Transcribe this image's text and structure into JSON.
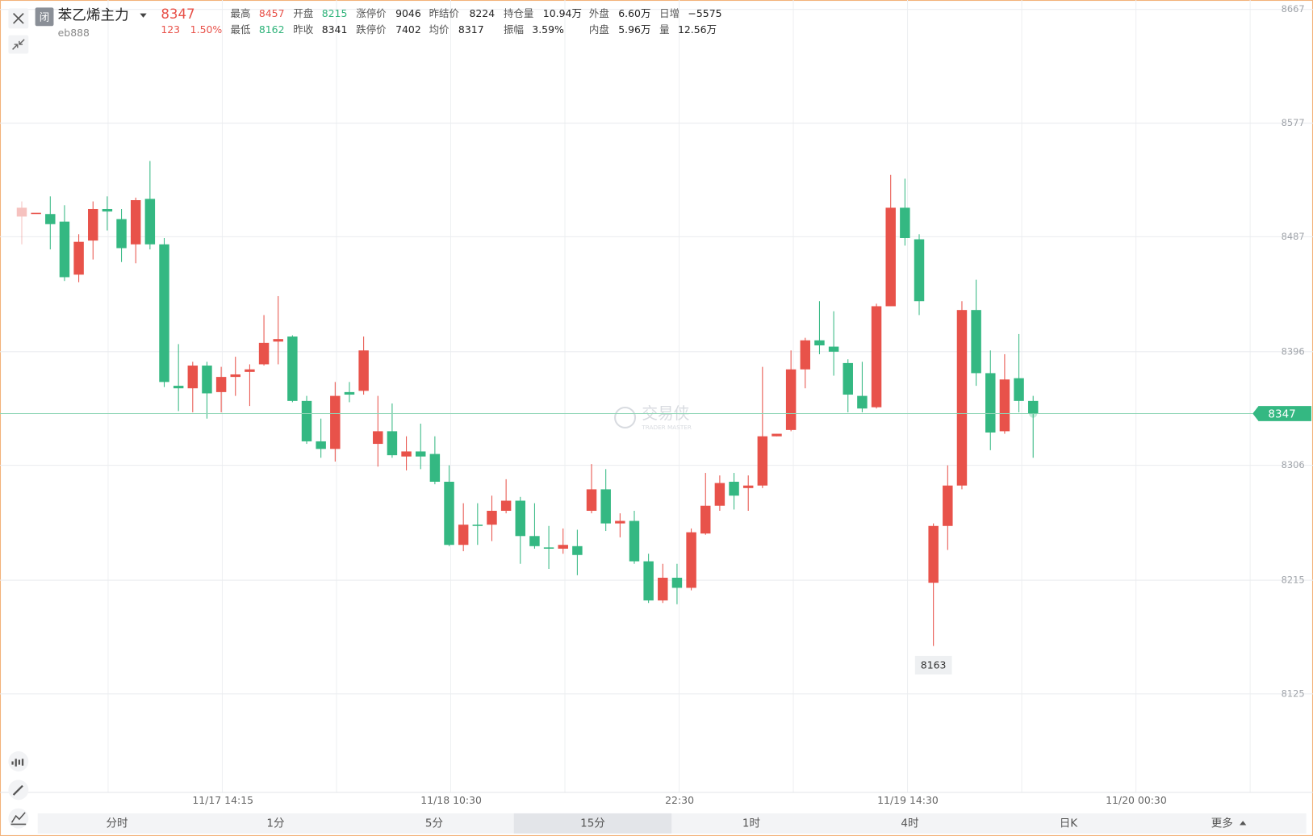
{
  "header": {
    "status": "闭",
    "symbol": "苯乙烯主力",
    "code": "eb888",
    "price": "8347",
    "change": "123",
    "change_pct": "1.50%",
    "stats": [
      [
        {
          "label": "最高",
          "value": "8457"
        },
        {
          "label": "开盘",
          "value": "8215"
        },
        {
          "label": "涨停价",
          "value": "9046"
        },
        {
          "label": "昨结价",
          "value": "8224"
        },
        {
          "label": "持仓量",
          "value": "10.94万"
        },
        {
          "label": "外盘",
          "value": "6.60万"
        },
        {
          "label": "日增",
          "value": "−5575"
        }
      ],
      [
        {
          "label": "最低",
          "value": "8162"
        },
        {
          "label": "昨收",
          "value": "8341"
        },
        {
          "label": "跌停价",
          "value": "7402"
        },
        {
          "label": "均价",
          "value": "8317"
        },
        {
          "label": "振幅",
          "value": "3.59%"
        },
        {
          "label": "内盘",
          "value": "5.96万"
        },
        {
          "label": "量",
          "value": "12.56万"
        }
      ]
    ]
  },
  "chart_data": {
    "type": "candlestick",
    "open": [
      8503,
      8506,
      8505,
      8499,
      8457,
      8484,
      8509,
      8501,
      8481,
      8517,
      8481,
      8369,
      8367,
      8385,
      8364,
      8376,
      8380,
      8386,
      8404,
      8408,
      8357,
      8325,
      8319,
      8364,
      8365,
      8323,
      8333,
      8313,
      8317,
      8315,
      8293,
      8243,
      8259,
      8259,
      8270,
      8278,
      8250,
      8241,
      8240,
      8242,
      8270,
      8287,
      8260,
      8262,
      8230,
      8199,
      8217,
      8209,
      8252,
      8274,
      8293,
      8288,
      8290,
      8329,
      8334,
      8382,
      8405,
      8400,
      8387,
      8361,
      8352,
      8432,
      8510,
      8485,
      8213,
      8258,
      8290,
      8429,
      8379,
      8333,
      8375,
      8357
    ],
    "high": [
      8515,
      8506,
      8519,
      8512,
      8489,
      8515,
      8519,
      8509,
      8518,
      8547,
      8486,
      8402,
      8388,
      8388,
      8384,
      8392,
      8386,
      8425,
      8440,
      8409,
      8361,
      8343,
      8372,
      8372,
      8408,
      8361,
      8355,
      8329,
      8339,
      8329,
      8306,
      8276,
      8276,
      8282,
      8295,
      8281,
      8276,
      8258,
      8256,
      8255,
      8307,
      8303,
      8268,
      8270,
      8236,
      8228,
      8228,
      8256,
      8300,
      8298,
      8300,
      8298,
      8384,
      8331,
      8397,
      8407,
      8436,
      8428,
      8390,
      8388,
      8434,
      8536,
      8533,
      8489,
      8260,
      8306,
      8436,
      8453,
      8397,
      8394,
      8410,
      8361
    ],
    "low": [
      8481,
      8506,
      8477,
      8452,
      8451,
      8469,
      8492,
      8467,
      8466,
      8477,
      8368,
      8349,
      8348,
      8343,
      8348,
      8361,
      8353,
      8385,
      8386,
      8356,
      8323,
      8312,
      8309,
      8356,
      8362,
      8305,
      8312,
      8302,
      8303,
      8291,
      8242,
      8238,
      8243,
      8246,
      8268,
      8228,
      8240,
      8224,
      8236,
      8219,
      8268,
      8254,
      8249,
      8228,
      8197,
      8197,
      8196,
      8207,
      8251,
      8270,
      8271,
      8270,
      8288,
      8329,
      8333,
      8367,
      8394,
      8377,
      8348,
      8348,
      8351,
      8432,
      8480,
      8425,
      8163,
      8239,
      8287,
      8369,
      8318,
      8331,
      8348,
      8312
    ],
    "close": [
      8510,
      8506,
      8497,
      8455,
      8483,
      8509,
      8507,
      8478,
      8516,
      8481,
      8372,
      8367,
      8385,
      8363,
      8376,
      8378,
      8382,
      8403,
      8406,
      8357,
      8325,
      8319,
      8361,
      8362,
      8397,
      8333,
      8314,
      8317,
      8313,
      8293,
      8243,
      8259,
      8258,
      8270,
      8278,
      8250,
      8242,
      8240,
      8243,
      8235,
      8287,
      8260,
      8262,
      8230,
      8199,
      8217,
      8209,
      8253,
      8274,
      8292,
      8282,
      8290,
      8329,
      8331,
      8382,
      8405,
      8401,
      8396,
      8362,
      8351,
      8432,
      8510,
      8486,
      8436,
      8258,
      8290,
      8429,
      8379,
      8332,
      8374,
      8357,
      8347
    ],
    "up_color": "#e8524a",
    "down_color": "#34b882",
    "ylim": [
      8047,
      8674.5
    ],
    "yticks": [
      8125,
      8215,
      8306,
      8396,
      8487,
      8577,
      8667
    ],
    "grid": true,
    "x_labels": [
      "11/17 14:15",
      "11/18 10:30",
      "22:30",
      "11/19 14:30",
      "11/20 00:30"
    ],
    "watermark": "交易侠",
    "watermark_sub": "TRADER MASTER"
  },
  "tabs": {
    "items": [
      "分时",
      "1分",
      "5分",
      "15分",
      "1时",
      "4时",
      "日K",
      "更多"
    ],
    "selected": 3
  }
}
